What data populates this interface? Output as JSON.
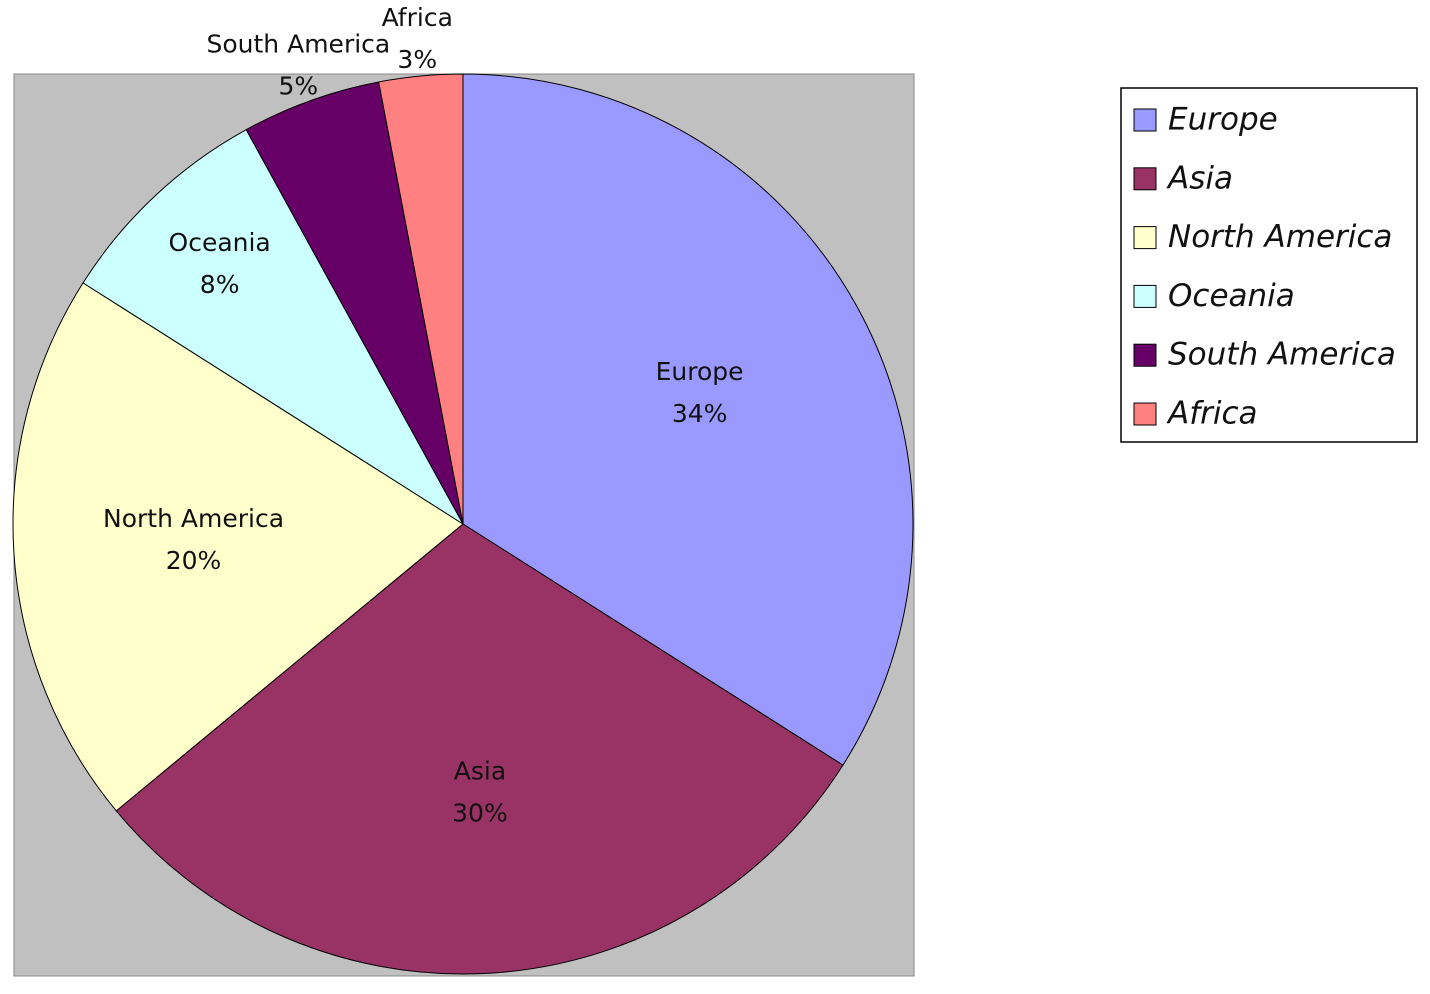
{
  "chart_data": {
    "type": "pie",
    "categories": [
      "Europe",
      "Asia",
      "North America",
      "Oceania",
      "South America",
      "Africa"
    ],
    "values": [
      34,
      30,
      20,
      8,
      5,
      3
    ],
    "value_labels": [
      "34%",
      "30%",
      "20%",
      "8%",
      "5%",
      "3%"
    ],
    "colors": [
      "#9999ff",
      "#993366",
      "#ffffcc",
      "#ccffff",
      "#660066",
      "#ff8080"
    ],
    "legend": "right"
  }
}
